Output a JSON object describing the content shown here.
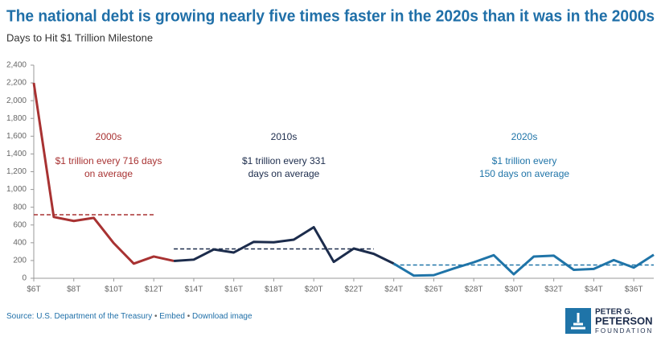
{
  "chart_data": {
    "type": "line",
    "title": "The national debt is growing nearly five times faster in the 2020s than it was in the 2000s",
    "subtitle": "Days to Hit $1 Trillion Milestone",
    "xlim": [
      6,
      37
    ],
    "ylim": [
      0,
      2400
    ],
    "xticks": [
      {
        "value": 6,
        "label": "$6T"
      },
      {
        "value": 8,
        "label": "$8T"
      },
      {
        "value": 10,
        "label": "$10T"
      },
      {
        "value": 12,
        "label": "$12T"
      },
      {
        "value": 14,
        "label": "$14T"
      },
      {
        "value": 16,
        "label": "$16T"
      },
      {
        "value": 18,
        "label": "$18T"
      },
      {
        "value": 20,
        "label": "$20T"
      },
      {
        "value": 22,
        "label": "$22T"
      },
      {
        "value": 24,
        "label": "$24T"
      },
      {
        "value": 26,
        "label": "$26T"
      },
      {
        "value": 28,
        "label": "$28T"
      },
      {
        "value": 30,
        "label": "$30T"
      },
      {
        "value": 32,
        "label": "$32T"
      },
      {
        "value": 34,
        "label": "$34T"
      },
      {
        "value": 36,
        "label": "$36T"
      }
    ],
    "yticks": [
      0,
      200,
      400,
      600,
      800,
      {
        "value": 1000,
        "label": "1,000"
      },
      {
        "value": 1200,
        "label": "1,200"
      },
      {
        "value": 1400,
        "label": "1,400"
      },
      {
        "value": 1600,
        "label": "1,600"
      },
      {
        "value": 1800,
        "label": "1,800"
      },
      {
        "value": 2000,
        "label": "2,000"
      },
      {
        "value": 2200,
        "label": "2,200"
      },
      {
        "value": 2400,
        "label": "2,400"
      }
    ],
    "grid": false,
    "series": [
      {
        "name": "2000s",
        "color": "#a83232",
        "x": [
          6,
          7,
          8,
          9,
          10,
          11,
          12,
          13
        ],
        "values": [
          2200,
          690,
          645,
          680,
          395,
          165,
          245,
          195
        ],
        "average": {
          "value": 716,
          "x": [
            6,
            12
          ]
        },
        "annotation": [
          "$1 trillion every 716 days",
          "on average"
        ]
      },
      {
        "name": "2010s",
        "color": "#1c2c4c",
        "x": [
          13,
          14,
          15,
          16,
          17,
          18,
          19,
          20,
          21,
          22,
          23,
          24
        ],
        "values": [
          195,
          210,
          325,
          290,
          410,
          405,
          435,
          575,
          185,
          335,
          275,
          165
        ],
        "average": {
          "value": 331,
          "x": [
            13,
            23
          ]
        },
        "annotation": [
          "$1 trillion every 331",
          "days on average"
        ]
      },
      {
        "name": "2020s",
        "color": "#1f74a8",
        "x": [
          24,
          25,
          26,
          27,
          28,
          29,
          30,
          31,
          32,
          33,
          34,
          35,
          36,
          37
        ],
        "values": [
          165,
          30,
          35,
          110,
          180,
          260,
          45,
          245,
          255,
          95,
          105,
          205,
          120,
          265
        ],
        "average": {
          "value": 150,
          "x": [
            24,
            37
          ]
        },
        "annotation": [
          "$1 trillion every",
          "150 days on average"
        ]
      }
    ]
  },
  "footer": {
    "source": "Source: U.S. Department of the Treasury",
    "embed": "Embed",
    "download": "Download image",
    "logo": [
      "PETER G.",
      "PETERSON",
      "FOUNDATION"
    ]
  }
}
